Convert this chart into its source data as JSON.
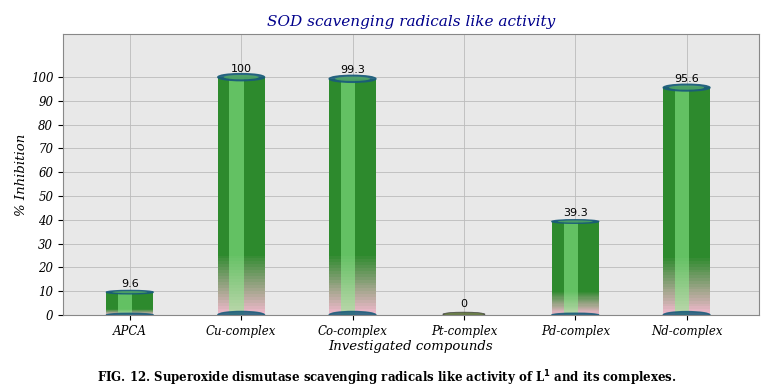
{
  "categories": [
    "APCA",
    "Cu-complex",
    "Co-complex",
    "Pt-complex",
    "Pd-complex",
    "Nd-complex"
  ],
  "values": [
    9.6,
    100,
    99.3,
    0,
    39.3,
    95.6
  ],
  "title": "SOD scavenging radicals like activity",
  "xlabel": "Investigated compounds",
  "ylabel": "% Inhibition",
  "ylim": [
    0,
    110
  ],
  "yticks": [
    0,
    10,
    20,
    30,
    40,
    50,
    60,
    70,
    80,
    90,
    100
  ],
  "caption": "FIG. 12. Superoxide dismutase scavenging radicals like activity of L",
  "caption_super": "1",
  "caption_end": " and its complexes.",
  "background_color": "#ffffff",
  "bar_bottom_color": "#f0b8cc",
  "bar_top_color": "#2d8a2d",
  "bar_highlight_color": "#90ee90",
  "bar_width": 0.42,
  "cylinder_top_color": "#1a5c7a",
  "grid_color": "#bbbbbb",
  "plot_bg_color": "#e8e8e8",
  "label_fontsize": 8.5,
  "title_fontsize": 11,
  "axis_label_fontsize": 9.5,
  "value_label_fontsize": 8,
  "title_color": "#00008B"
}
